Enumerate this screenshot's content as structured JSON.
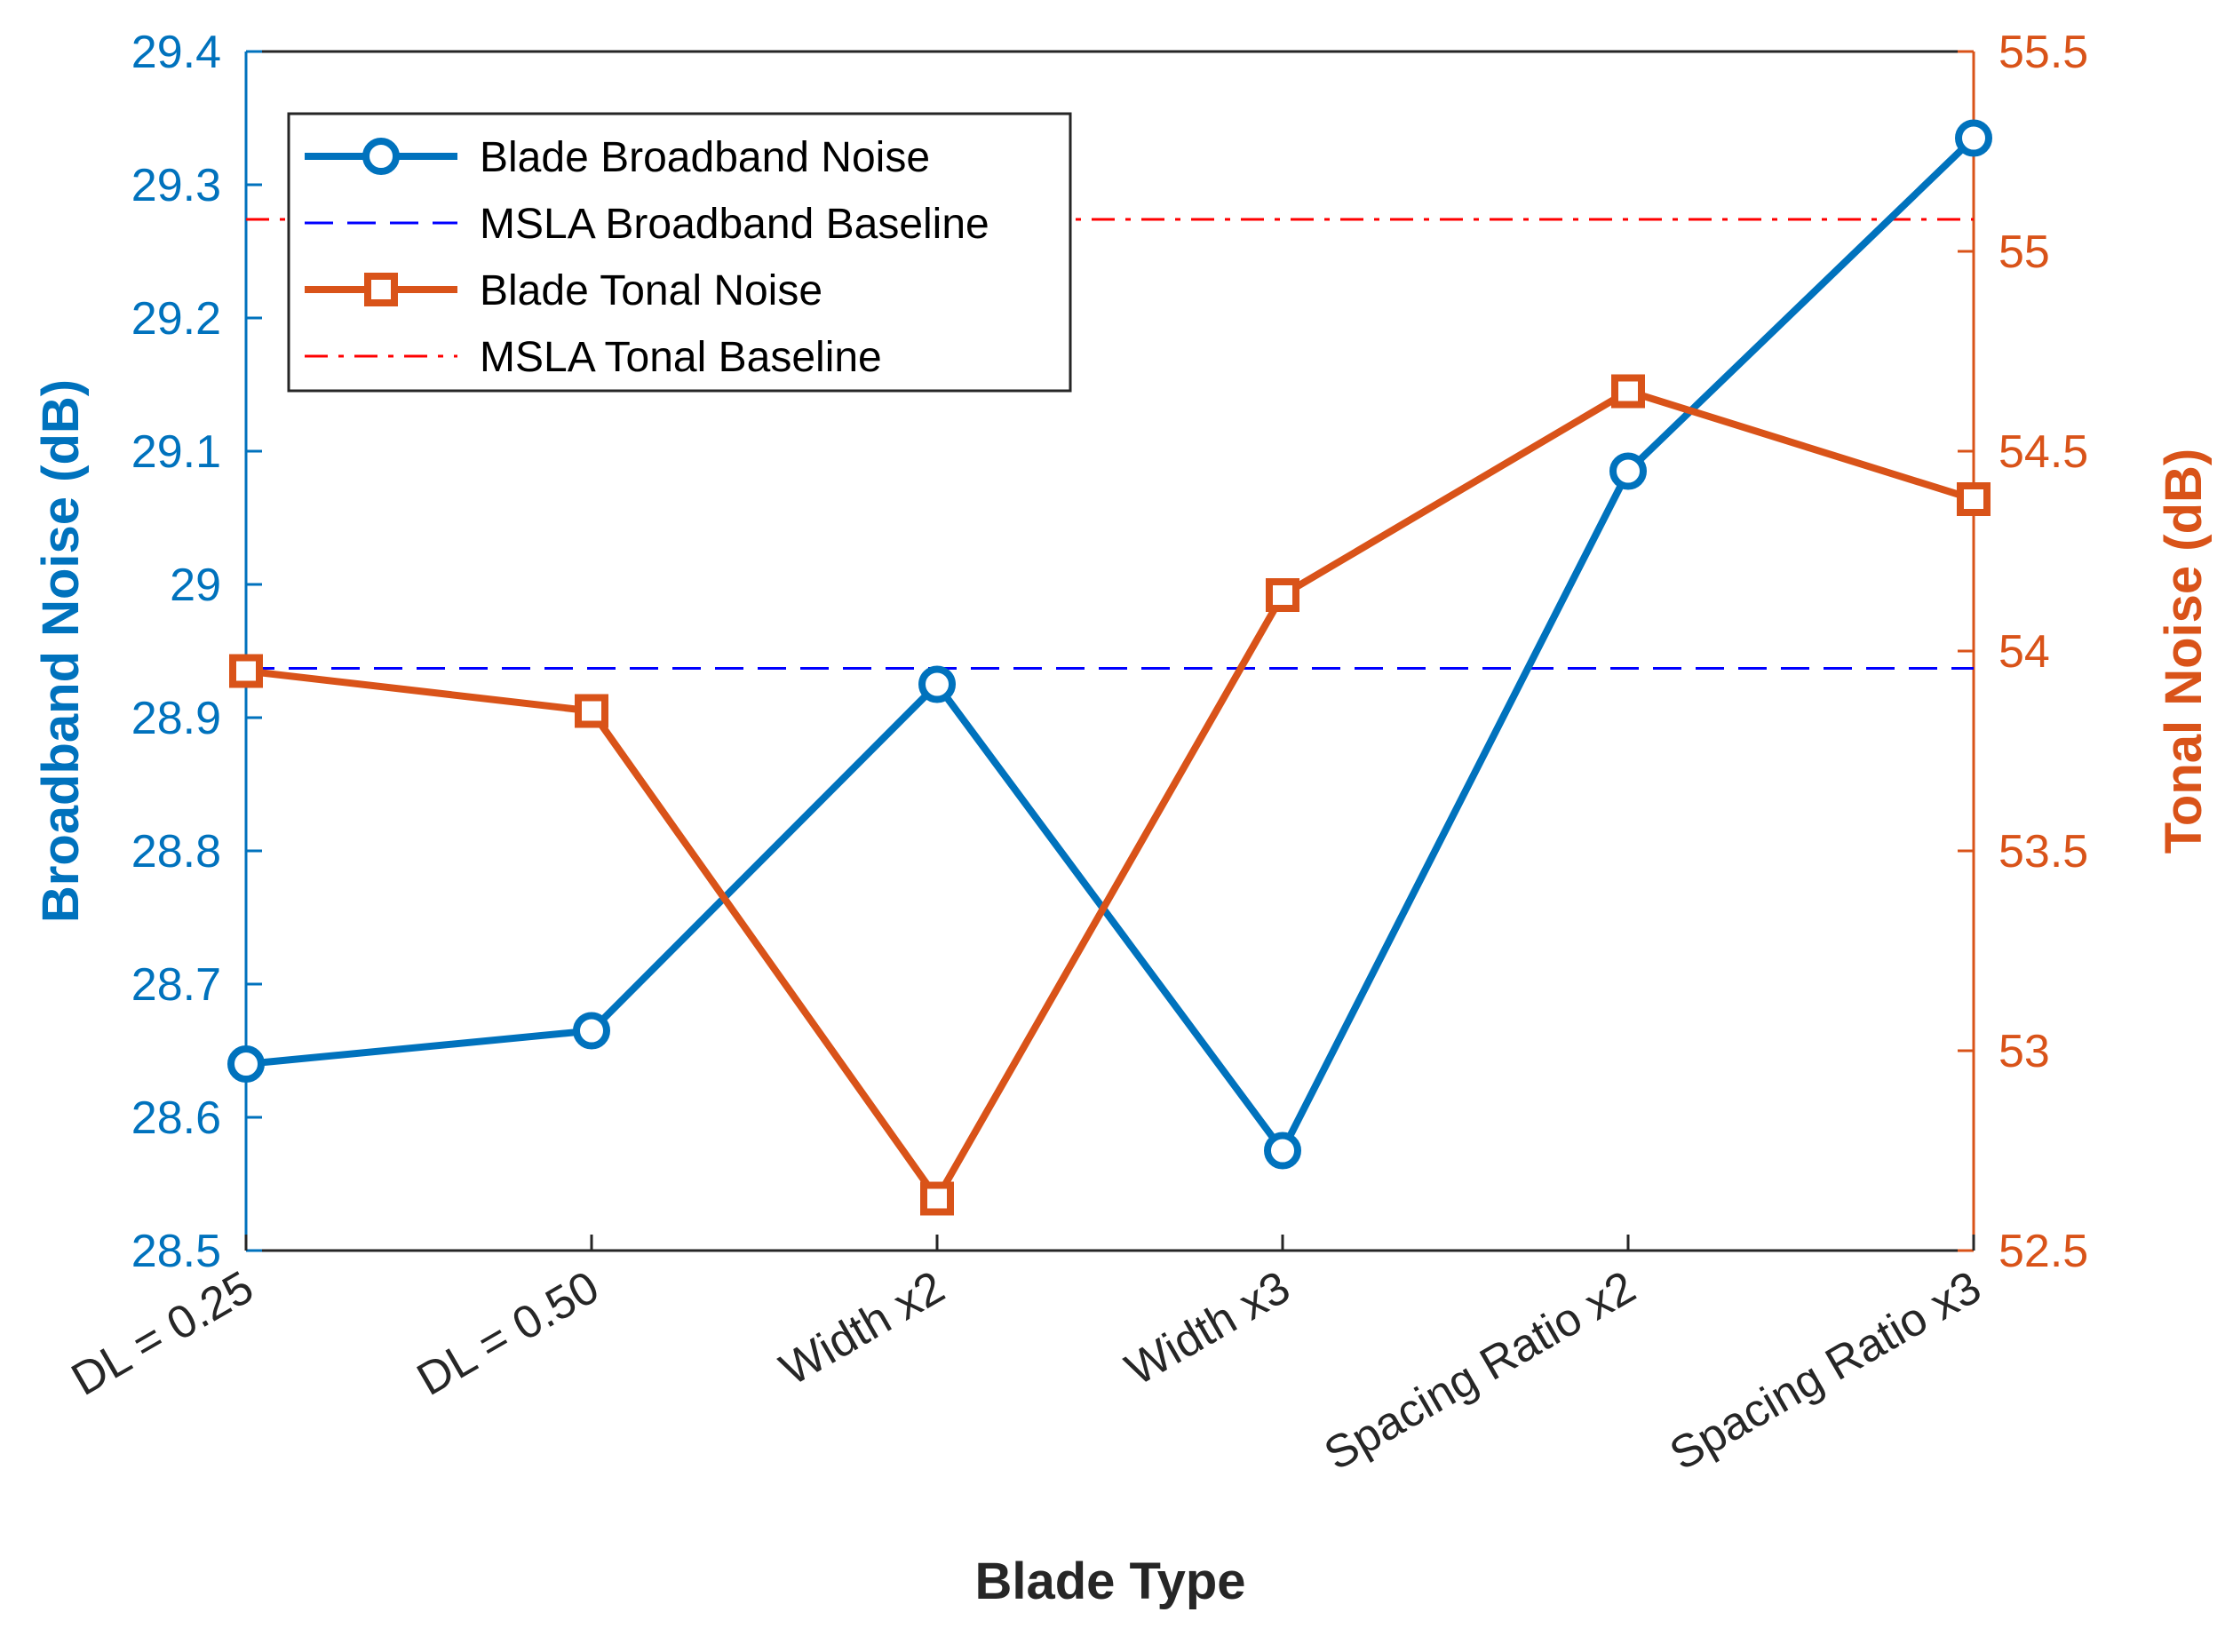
{
  "chart_data": {
    "type": "line",
    "categories": [
      "DL = 0.25",
      "DL = 0.50",
      "Width x2",
      "Width x3",
      "Spacing Ratio x2",
      "Spacing Ratio x3"
    ],
    "xlabel": "Blade Type",
    "ylabel_left": "Broadband Noise (dB)",
    "ylabel_right": "Tonal Noise (dB)",
    "ylim_left": [
      28.5,
      29.4
    ],
    "ylim_right": [
      52.5,
      55.5
    ],
    "yticks_left": [
      "28.5",
      "28.6",
      "28.7",
      "28.8",
      "28.9",
      "29",
      "29.1",
      "29.2",
      "29.3",
      "29.4"
    ],
    "yticks_right": [
      "52.5",
      "53",
      "53.5",
      "54",
      "54.5",
      "55",
      "55.5"
    ],
    "grid": false,
    "legend_position": "top-left",
    "series": [
      {
        "name": "Blade Broadband Noise",
        "axis": "left",
        "marker": "circle",
        "color": "#0072BD",
        "values": [
          28.64,
          28.665,
          28.925,
          28.575,
          29.085,
          29.335
        ]
      },
      {
        "name": "MSLA Broadband Baseline",
        "axis": "left",
        "style": "dashed",
        "color": "#0000FF",
        "value": 28.937
      },
      {
        "name": "Blade Tonal Noise",
        "axis": "right",
        "marker": "square",
        "color": "#D95319",
        "values": [
          53.95,
          53.85,
          52.63,
          54.14,
          54.65,
          54.38
        ]
      },
      {
        "name": "MSLA Tonal Baseline",
        "axis": "right",
        "style": "dashdot",
        "color": "#FF0000",
        "value": 55.08
      }
    ],
    "left_axis_color": "#0072BD",
    "right_axis_color": "#D95319"
  }
}
